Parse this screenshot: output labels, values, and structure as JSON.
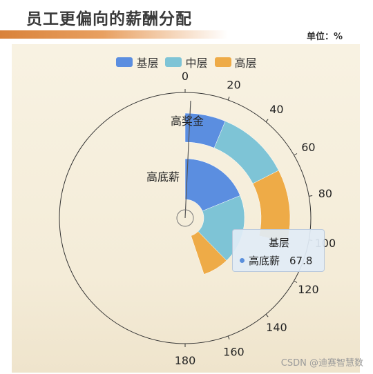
{
  "header": {
    "title": "员工更偏向的薪酬分配",
    "unit": "单位：%"
  },
  "legend": [
    {
      "name": "基层",
      "color": "#5b8ee0"
    },
    {
      "name": "中层",
      "color": "#7ec4d6"
    },
    {
      "name": "高层",
      "color": "#eeab47"
    }
  ],
  "chart_data": {
    "type": "polar-stacked-bar",
    "angle_axis": {
      "min": 0,
      "max": 180,
      "ticks": [
        0,
        20,
        40,
        60,
        80,
        100,
        120,
        140,
        160,
        180
      ]
    },
    "categories": [
      "高奖金",
      "高底薪"
    ],
    "series": [
      {
        "name": "基层",
        "color": "#5b8ee0",
        "values": [
          22.5,
          67.8
        ]
      },
      {
        "name": "中层",
        "color": "#7ec4d6",
        "values": [
          40.5,
          68
        ]
      },
      {
        "name": "高层",
        "color": "#eeab47",
        "values": [
          40.5,
          25.7
        ]
      }
    ]
  },
  "tooltip": {
    "title": "基层",
    "label": "高底薪",
    "value": "67.8"
  },
  "watermark": "CSDN @迪赛智慧数"
}
